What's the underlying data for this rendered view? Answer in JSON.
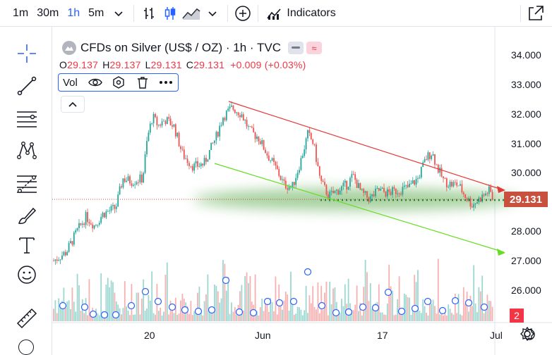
{
  "toolbar": {
    "timeframes": [
      "1m",
      "30m",
      "1h",
      "5m"
    ],
    "active_timeframe": "1h",
    "indicators_label": "Indicators"
  },
  "legend": {
    "title": "CFDs on Silver (US$ / OZ) · 1h · TVC",
    "wave_glyph": "≈",
    "ohlc": {
      "o_label": "O",
      "o_value": "29.137",
      "h_label": "H",
      "h_value": "29.137",
      "l_label": "L",
      "l_value": "29.131",
      "c_label": "C",
      "c_value": "29.131",
      "change": "+0.009 (+0.03%)"
    },
    "volume_label": "Vol"
  },
  "price_axis": {
    "labels": [
      "34.000",
      "33.000",
      "32.000",
      "31.000",
      "30.000",
      "29.000",
      "28.000",
      "27.000",
      "26.000"
    ],
    "last_price": "29.131",
    "last_price_color": "#c8503e"
  },
  "time_axis": {
    "labels": [
      "20",
      "Jun",
      "17",
      "Jul"
    ]
  },
  "badge_count": "2",
  "colors": {
    "up": "#26a69a",
    "down": "#ef5350",
    "accent": "#2962ff",
    "upper_trendline": "#e53935",
    "lower_trendline": "#66dd22",
    "support_zone": "#3a9a2a"
  },
  "icons": {
    "left_toolbar": [
      "crosshair-icon",
      "trendline-icon",
      "horizontal-lines-icon",
      "pattern-icon",
      "fib-icon",
      "brush-icon",
      "text-icon",
      "emoji-icon",
      "ruler-icon"
    ],
    "top_toolbar": [
      "chevron-down-icon",
      "bar-style-icon",
      "candle-style-icon",
      "area-style-icon",
      "add-compare-icon",
      "indicators-icon",
      "fullscreen-icon"
    ]
  }
}
